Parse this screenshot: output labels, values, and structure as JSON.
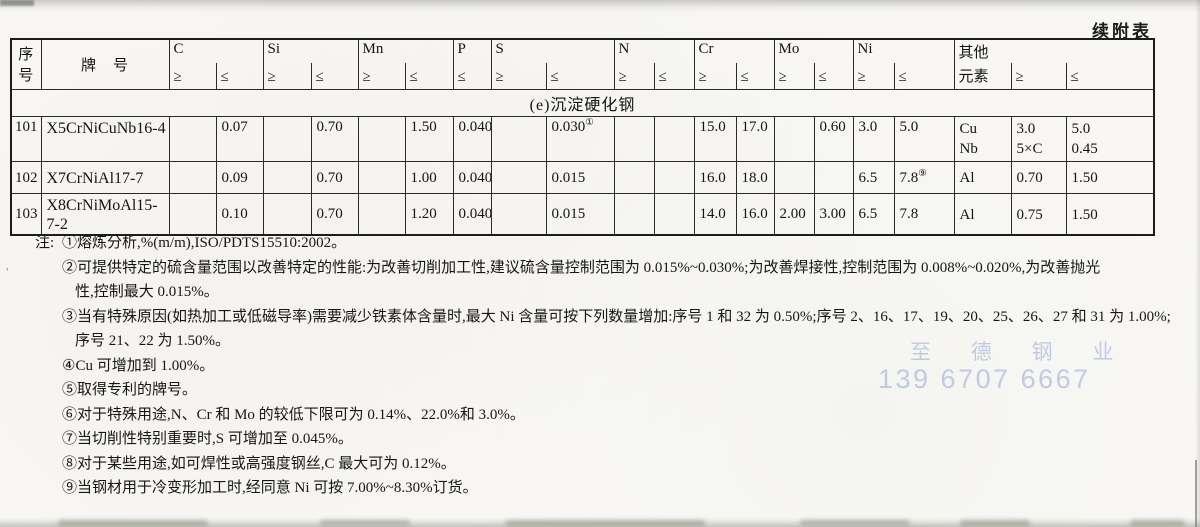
{
  "page_label": "续附表",
  "table": {
    "row_header": {
      "col1": "序号",
      "col2": "牌　号"
    },
    "element_groups": [
      {
        "symbol": "C",
        "limits": [
          "≥",
          "≤"
        ]
      },
      {
        "symbol": "Si",
        "limits": [
          "≥",
          "≤"
        ]
      },
      {
        "symbol": "Mn",
        "limits": [
          "≥",
          "≤"
        ]
      },
      {
        "symbol": "P",
        "limits": [
          "≤"
        ]
      },
      {
        "symbol": "S",
        "limits": [
          "≥",
          "≤"
        ]
      },
      {
        "symbol": "N",
        "limits": [
          "≥",
          "≤"
        ]
      },
      {
        "symbol": "Cr",
        "limits": [
          "≥",
          "≤"
        ]
      },
      {
        "symbol": "Mo",
        "limits": [
          "≥",
          "≤"
        ]
      },
      {
        "symbol": "Ni",
        "limits": [
          "≥",
          "≤"
        ]
      }
    ],
    "other_group": {
      "top": "其他",
      "bottom": "元素",
      "limits": [
        "≥",
        "≤"
      ]
    },
    "section_header": "(e)沉淀硬化钢",
    "rows": [
      {
        "no": "101",
        "grade": "X5CrNiCuNb16-4",
        "values": [
          [
            "",
            "0.07"
          ],
          [
            "",
            "0.70"
          ],
          [
            "",
            "1.50"
          ],
          [
            "0.040"
          ],
          [
            "",
            {
              "t": "0.030",
              "sup": "①"
            }
          ],
          [
            "",
            ""
          ],
          [
            "15.0",
            "17.0"
          ],
          [
            "",
            "0.60"
          ],
          [
            "3.0",
            "5.0"
          ]
        ],
        "other": {
          "el": [
            "Cu",
            "Nb"
          ],
          "min": [
            "3.0",
            "5×C"
          ],
          "max": [
            "5.0",
            "0.45"
          ]
        }
      },
      {
        "no": "102",
        "grade": "X7CrNiAl17-7",
        "values": [
          [
            "",
            "0.09"
          ],
          [
            "",
            "0.70"
          ],
          [
            "",
            "1.00"
          ],
          [
            "0.040"
          ],
          [
            "",
            "0.015"
          ],
          [
            "",
            ""
          ],
          [
            "16.0",
            "18.0"
          ],
          [
            "",
            ""
          ],
          [
            "6.5",
            {
              "t": "7.8",
              "sup": "⑨"
            }
          ]
        ],
        "other": {
          "el": [
            "Al"
          ],
          "min": [
            "0.70"
          ],
          "max": [
            "1.50"
          ]
        }
      },
      {
        "no": "103",
        "grade": "X8CrNiMoAl15-7-2",
        "values": [
          [
            "",
            "0.10"
          ],
          [
            "",
            "0.70"
          ],
          [
            "",
            "1.20"
          ],
          [
            "0.040"
          ],
          [
            "",
            "0.015"
          ],
          [
            "",
            ""
          ],
          [
            "14.0",
            "16.0"
          ],
          [
            "2.00",
            "3.00"
          ],
          [
            "6.5",
            "7.8"
          ]
        ],
        "other": {
          "el": [
            "Al"
          ],
          "min": [
            "0.75"
          ],
          "max": [
            "1.50"
          ]
        }
      }
    ]
  },
  "notes": {
    "prefix": "注:",
    "items": [
      {
        "lines": [
          "①熔炼分析,%(m/m),ISO/PDTS15510:2002。"
        ]
      },
      {
        "lines": [
          "②可提供特定的硫含量范围以改善特定的性能:为改善切削加工性,建议硫含量控制范围为 0.015%~0.030%;为改善焊接性,控制范围为 0.008%~0.020%,为改善抛光",
          "性,控制最大 0.015%。"
        ]
      },
      {
        "lines": [
          "③当有特殊原因(如热加工或低磁导率)需要减少铁素体含量时,最大 Ni 含量可按下列数量增加:序号 1 和 32 为 0.50%;序号 2、16、17、19、20、25、26、27 和 31 为 1.00%;",
          "序号 21、22 为 1.50%。"
        ]
      },
      {
        "lines": [
          "④Cu 可增加到 1.00%。"
        ]
      },
      {
        "lines": [
          "⑤取得专利的牌号。"
        ]
      },
      {
        "lines": [
          "⑥对于特殊用途,N、Cr 和 Mo 的较低下限可为 0.14%、22.0%和 3.0%。"
        ]
      },
      {
        "lines": [
          "⑦当切削性特别重要时,S 可增加至 0.045%。"
        ]
      },
      {
        "lines": [
          "⑧对于某些用途,如可焊性或高强度钢丝,C 最大可为 0.12%。"
        ]
      },
      {
        "lines": [
          "⑨当钢材用于冷变形加工时,经同意 Ni 可按 7.00%~8.30%订货。"
        ]
      }
    ]
  },
  "watermark": {
    "line1": "至 德 钢 业",
    "line2": "139 6707 6667",
    "color": "#8fa0d6"
  }
}
